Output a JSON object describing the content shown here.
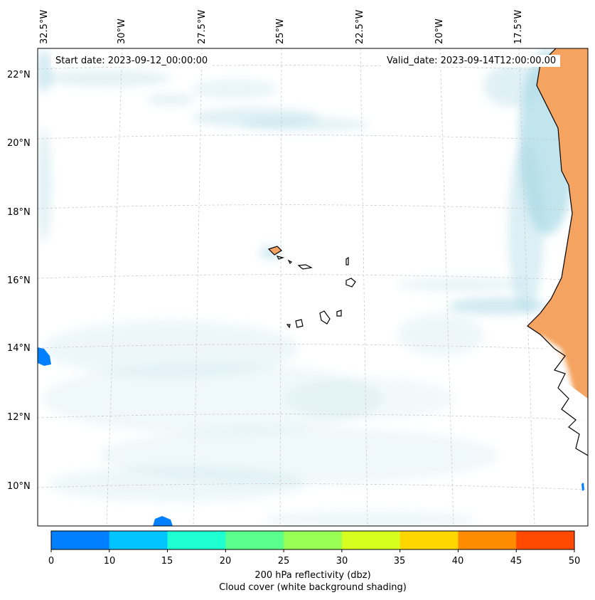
{
  "map": {
    "start_label": "Start date: 2023-09-12_00:00:00",
    "valid_label": "Valid_date: 2023-09-14T12:00:00.00",
    "lon_labels": [
      "32.5°W",
      "30°W",
      "27.5°W",
      "25°W",
      "22.5°W",
      "20°W",
      "17.5°W"
    ],
    "lat_labels": [
      "22°N",
      "20°N",
      "18°N",
      "16°N",
      "14°N",
      "12°N",
      "10°N"
    ],
    "colors": {
      "land": "#f4a460",
      "cloud": "#a6d8e6",
      "coast": "#000000",
      "grid": "#bfbfbf"
    },
    "icons": [
      "coastline-icon",
      "island-icon"
    ]
  },
  "colorbar": {
    "ticks": [
      "0",
      "10",
      "15",
      "20",
      "25",
      "30",
      "35",
      "40",
      "45",
      "50"
    ],
    "colors": [
      "#0080ff",
      "#00c4ff",
      "#1effd2",
      "#5bff8c",
      "#99ff55",
      "#d6ff1f",
      "#ffd600",
      "#ff8c00",
      "#ff4a00"
    ],
    "title": "200 hPa reflectivity (dbz)",
    "subtitle": "Cloud cover (white background shading)"
  }
}
